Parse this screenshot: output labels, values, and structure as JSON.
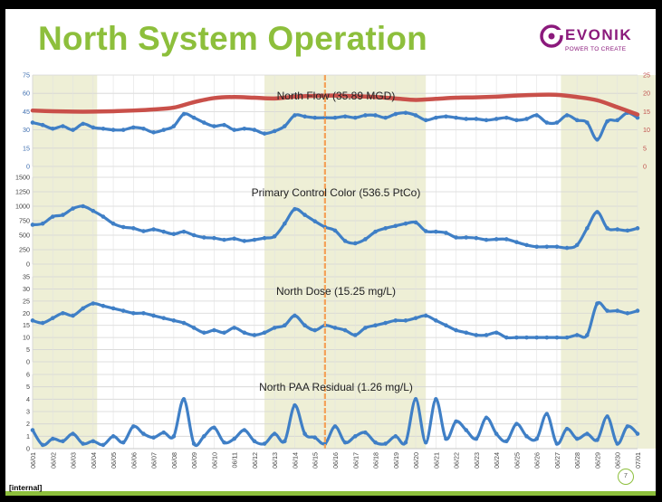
{
  "slide": {
    "title": "North System Operation",
    "footer_label": "[internal]",
    "page_number": "7"
  },
  "logo": {
    "name": "EVONIK",
    "tagline": "POWER TO CREATE",
    "color": "#8b1a7c"
  },
  "colors": {
    "title": "#8dbf3c",
    "series": "#3f7fc6",
    "flow_line": "#c9504a",
    "highlight_band": "#eeefd6",
    "event_line": "#f4a259",
    "footer_line": "#8dbf3c"
  },
  "chart_data": [
    {
      "type": "scatter",
      "title": "North Flow (35.89 MGD)",
      "ylim": [
        0,
        75
      ],
      "yticks": [
        "0",
        "15",
        "30",
        "45",
        "60",
        "75"
      ],
      "y2lim": [
        0,
        25
      ],
      "y2ticks": [
        "0",
        "5",
        "10",
        "15",
        "20",
        "25"
      ],
      "series": [
        {
          "axis": "left",
          "type": "scatter",
          "x": [
            0,
            0.5,
            1,
            1.5,
            2,
            2.5,
            3,
            3.5,
            4,
            4.5,
            5,
            5.5,
            6,
            6.5,
            7,
            7.5,
            8,
            8.5,
            9,
            9.5,
            10,
            10.5,
            11,
            11.5,
            12,
            12.5,
            13,
            13.5,
            14,
            14.5,
            15,
            15.5,
            16,
            16.5,
            17,
            17.5,
            18,
            18.5,
            19,
            19.5,
            20,
            20.5,
            21,
            21.5,
            22,
            22.5,
            23,
            23.5,
            24,
            24.5,
            25,
            25.5,
            26,
            26.5,
            27,
            27.5,
            28,
            28.5,
            29,
            29.5,
            30
          ],
          "values": [
            36,
            34,
            31,
            33,
            30,
            35,
            32,
            31,
            30,
            30,
            32,
            31,
            28,
            30,
            33,
            43,
            40,
            36,
            33,
            34,
            30,
            31,
            30,
            27,
            29,
            33,
            42,
            41,
            40,
            40,
            40,
            41,
            40,
            42,
            42,
            40,
            43,
            44,
            42,
            38,
            40,
            41,
            40,
            39,
            39,
            38,
            39,
            40,
            38,
            39,
            42,
            36,
            36,
            42,
            38,
            36,
            22,
            37,
            38,
            44,
            40
          ]
        },
        {
          "axis": "right",
          "type": "line",
          "x": [
            0,
            1,
            2,
            3,
            4,
            5,
            6,
            7,
            8,
            9,
            10,
            11,
            12,
            13,
            14,
            15,
            16,
            17,
            18,
            19,
            20,
            21,
            22,
            23,
            24,
            25,
            26,
            27,
            28,
            29,
            30
          ],
          "values": [
            15.3,
            15.1,
            15.0,
            15.0,
            15.1,
            15.3,
            15.6,
            16.1,
            17.6,
            18.7,
            19.0,
            18.8,
            18.6,
            19.1,
            19.3,
            19.4,
            19.2,
            19.0,
            18.6,
            18.2,
            18.5,
            18.8,
            18.9,
            19.1,
            19.4,
            19.6,
            19.6,
            19.0,
            18.1,
            16.2,
            14.2
          ]
        }
      ]
    },
    {
      "type": "scatter",
      "title": "Primary Control Color (536.5 PtCo)",
      "ylim": [
        0,
        1500
      ],
      "yticks": [
        "0",
        "250",
        "500",
        "750",
        "1000",
        "1250",
        "1500"
      ],
      "series": [
        {
          "type": "scatter",
          "x": [
            0,
            0.5,
            1,
            1.5,
            2,
            2.5,
            3,
            3.5,
            4,
            4.5,
            5,
            5.5,
            6,
            6.5,
            7,
            7.5,
            8,
            8.5,
            9,
            9.5,
            10,
            10.5,
            11,
            11.5,
            12,
            12.5,
            13,
            13.5,
            14,
            14.5,
            15,
            15.5,
            16,
            16.5,
            17,
            17.5,
            18,
            18.5,
            19,
            19.5,
            20,
            20.5,
            21,
            21.5,
            22,
            22.5,
            23,
            23.5,
            24,
            24.5,
            25,
            25.5,
            26,
            26.5,
            27,
            27.5,
            28,
            28.5,
            29,
            29.5,
            30
          ],
          "values": [
            680,
            700,
            820,
            850,
            960,
            1000,
            920,
            820,
            700,
            640,
            620,
            570,
            600,
            560,
            520,
            560,
            500,
            460,
            450,
            420,
            440,
            400,
            420,
            450,
            480,
            700,
            950,
            850,
            740,
            640,
            580,
            400,
            360,
            430,
            560,
            620,
            660,
            700,
            720,
            570,
            560,
            540,
            460,
            460,
            450,
            420,
            430,
            430,
            380,
            330,
            300,
            300,
            300,
            280,
            330,
            620,
            900,
            620,
            600,
            580,
            620
          ]
        }
      ]
    },
    {
      "type": "scatter",
      "title": "North Dose (15.25 mg/L)",
      "ylim": [
        0,
        35
      ],
      "yticks": [
        "0",
        "5",
        "10",
        "15",
        "20",
        "25",
        "30",
        "35"
      ],
      "series": [
        {
          "type": "scatter",
          "x": [
            0,
            0.5,
            1,
            1.5,
            2,
            2.5,
            3,
            3.5,
            4,
            4.5,
            5,
            5.5,
            6,
            6.5,
            7,
            7.5,
            8,
            8.5,
            9,
            9.5,
            10,
            10.5,
            11,
            11.5,
            12,
            12.5,
            13,
            13.5,
            14,
            14.5,
            15,
            15.5,
            16,
            16.5,
            17,
            17.5,
            18,
            18.5,
            19,
            19.5,
            20,
            20.5,
            21,
            21.5,
            22,
            22.5,
            23,
            23.5,
            24,
            24.5,
            25,
            25.5,
            26,
            26.5,
            27,
            27.5,
            28,
            28.5,
            29,
            29.5,
            30
          ],
          "values": [
            17,
            16,
            18,
            20,
            19,
            22,
            24,
            23,
            22,
            21,
            20,
            20,
            19,
            18,
            17,
            16,
            14,
            12,
            13,
            12,
            14,
            12,
            11,
            12,
            14,
            15,
            19,
            15,
            13,
            15,
            14,
            13,
            11,
            14,
            15,
            16,
            17,
            17,
            18,
            19,
            17,
            15,
            13,
            12,
            11,
            11,
            12,
            10,
            10,
            10,
            10,
            10,
            10,
            10,
            11,
            11,
            24,
            21,
            21,
            20,
            21
          ]
        }
      ]
    },
    {
      "type": "scatter",
      "title": "North PAA Residual (1.26 mg/L)",
      "ylim": [
        0,
        6
      ],
      "yticks": [
        "0",
        "1",
        "2",
        "3",
        "4",
        "5",
        "6"
      ],
      "series": [
        {
          "type": "scatter",
          "x": [
            0,
            0.5,
            1,
            1.5,
            2,
            2.5,
            3,
            3.5,
            4,
            4.5,
            5,
            5.5,
            6,
            6.5,
            7,
            7.5,
            8,
            8.5,
            9,
            9.5,
            10,
            10.5,
            11,
            11.5,
            12,
            12.5,
            13,
            13.5,
            14,
            14.5,
            15,
            15.5,
            16,
            16.5,
            17,
            17.5,
            18,
            18.5,
            19,
            19.5,
            20,
            20.5,
            21,
            21.5,
            22,
            22.5,
            23,
            23.5,
            24,
            24.5,
            25,
            25.5,
            26,
            26.5,
            27,
            27.5,
            28,
            28.5,
            29,
            29.5,
            30
          ],
          "values": [
            1.5,
            0.3,
            0.8,
            0.6,
            1.2,
            0.4,
            0.6,
            0.3,
            1.0,
            0.5,
            1.8,
            1.2,
            0.9,
            1.3,
            1.0,
            4.0,
            0.4,
            1.0,
            1.7,
            0.5,
            0.8,
            1.5,
            0.6,
            0.4,
            1.2,
            0.6,
            3.5,
            1.2,
            0.9,
            0.4,
            1.8,
            0.5,
            1.0,
            1.3,
            0.5,
            0.4,
            1.0,
            0.5,
            4.0,
            0.5,
            4.0,
            0.8,
            2.2,
            1.5,
            0.8,
            2.5,
            1.2,
            0.6,
            2.0,
            1.0,
            0.8,
            2.8,
            0.4,
            1.6,
            0.8,
            1.2,
            0.7,
            2.6,
            0.4,
            1.8,
            1.2
          ]
        }
      ]
    }
  ],
  "x_axis": {
    "tick_labels": [
      "06/01",
      "06/02",
      "06/03",
      "06/04",
      "06/05",
      "06/06",
      "06/07",
      "06/08",
      "06/09",
      "06/10",
      "06/11",
      "06/12",
      "06/13",
      "06/14",
      "06/15",
      "06/16",
      "06/17",
      "06/18",
      "06/19",
      "06/20",
      "06/21",
      "06/22",
      "06/23",
      "06/24",
      "06/25",
      "06/26",
      "06/27",
      "06/28",
      "06/29",
      "06/30",
      "07/01"
    ]
  },
  "highlight_ranges": [
    [
      0,
      3.2
    ],
    [
      11.5,
      19.5
    ],
    [
      26.2,
      31
    ]
  ],
  "event_marker_x": 14.5
}
